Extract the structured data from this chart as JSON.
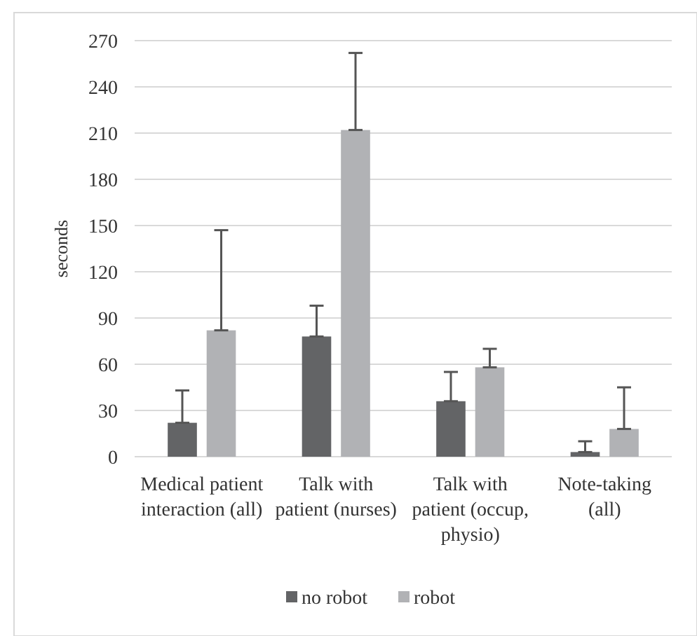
{
  "chart_data": {
    "type": "bar",
    "ylabel": "seconds",
    "categories": [
      "Medical patient interaction (all)",
      "Talk with patient (nurses)",
      "Talk with patient (occup, physio)",
      "Note-taking (all)"
    ],
    "series": [
      {
        "name": "no robot",
        "color": "#636466",
        "values": [
          22,
          78,
          36,
          3
        ],
        "errors": [
          [
            22,
            43
          ],
          [
            78,
            98
          ],
          [
            36,
            55
          ],
          [
            3,
            10
          ]
        ]
      },
      {
        "name": "robot",
        "color": "#b1b2b5",
        "values": [
          82,
          212,
          58,
          18
        ],
        "errors": [
          [
            82,
            147
          ],
          [
            212,
            262
          ],
          [
            58,
            70
          ],
          [
            18,
            45
          ]
        ]
      }
    ],
    "ylim": [
      0,
      270
    ],
    "yticks": [
      0,
      30,
      60,
      90,
      120,
      150,
      180,
      210,
      240,
      270
    ],
    "grid": "y",
    "legend": "bottom"
  }
}
